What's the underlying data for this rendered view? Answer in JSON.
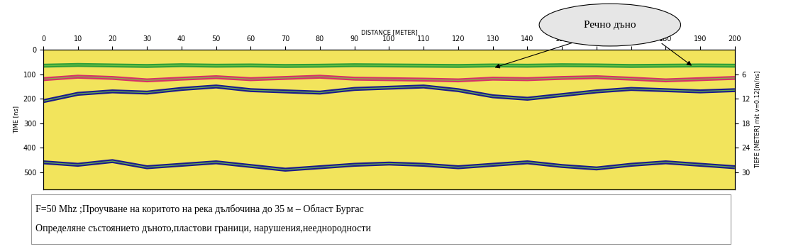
{
  "chart_data": {
    "type": "line",
    "xlabel": "DISTANCE [METER]",
    "ylabel": "TIME [ns]",
    "y2label": "TIEFE [METER] mit v=0.12[m/ns]",
    "x": [
      0,
      10,
      20,
      30,
      40,
      50,
      60,
      70,
      80,
      90,
      100,
      110,
      120,
      130,
      140,
      150,
      160,
      170,
      180,
      190,
      200
    ],
    "series": [
      {
        "color": "#2e9e3a",
        "values": [
          65,
          62,
          64,
          66,
          63,
          65,
          64,
          66,
          65,
          63,
          64,
          65,
          66,
          64,
          65,
          63,
          64,
          66,
          65,
          64,
          65
        ]
      },
      {
        "color": "#d6306a",
        "values": [
          120,
          110,
          115,
          125,
          118,
          112,
          120,
          115,
          110,
          118,
          120,
          122,
          125,
          118,
          120,
          115,
          112,
          118,
          125,
          120,
          115
        ]
      },
      {
        "color": "#1a1a8c",
        "values": [
          210,
          180,
          170,
          175,
          160,
          150,
          165,
          170,
          175,
          160,
          155,
          150,
          165,
          190,
          200,
          185,
          170,
          160,
          165,
          170,
          165
        ]
      },
      {
        "color": "#1a1a8c",
        "values": [
          460,
          470,
          455,
          480,
          470,
          460,
          475,
          490,
          480,
          470,
          465,
          470,
          480,
          470,
          460,
          475,
          485,
          470,
          460,
          470,
          480
        ]
      }
    ],
    "xlim": [
      0,
      200
    ],
    "xticks": [
      0,
      10,
      20,
      30,
      40,
      50,
      60,
      70,
      80,
      90,
      100,
      110,
      120,
      130,
      140,
      150,
      160,
      170,
      180,
      190,
      200
    ],
    "ylim": [
      0,
      570
    ],
    "yticks": [
      0,
      100,
      200,
      300,
      400,
      500
    ],
    "y2lim": [
      0,
      34.2
    ],
    "y2ticks": [
      6,
      12,
      18,
      24,
      30
    ],
    "grid": false,
    "annotations": [
      {
        "text": "Речно дъно",
        "points": [
          [
            130,
            75
          ],
          [
            188,
            70
          ]
        ]
      }
    ],
    "caption": [
      "F=50 Mhz ;Проучване на коритото на река дълбочина до 35 м – Област Бургас",
      "Определяне състоянието дъното,пластови граници, нарушения,нееднородности"
    ]
  }
}
